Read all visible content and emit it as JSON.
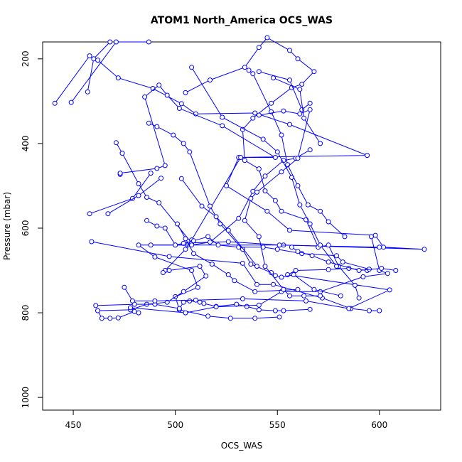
{
  "chart_data": {
    "type": "scatter",
    "title": "ATOM1 North_America OCS_WAS",
    "xlabel": "OCS_WAS",
    "ylabel": "Pressure (mbar)",
    "xlim": [
      435,
      630
    ],
    "ylim": [
      1030,
      160
    ],
    "y_inverted": true,
    "grid": false,
    "legend": "none",
    "x_ticks": [
      "450",
      "500",
      "550",
      "600"
    ],
    "y_ticks": [
      "200",
      "400",
      "600",
      "800",
      "1000"
    ],
    "x_tick_values": [
      450,
      500,
      550,
      600
    ],
    "y_tick_values": [
      200,
      400,
      600,
      800,
      1000
    ],
    "color": "#0000ff",
    "series_segments": [
      [
        [
          441,
          305
        ],
        [
          458,
          193
        ],
        [
          462,
          203
        ],
        [
          472,
          245
        ],
        [
          489,
          270
        ],
        [
          503,
          306
        ],
        [
          510,
          330
        ],
        [
          539,
          328
        ],
        [
          556,
          355
        ],
        [
          594,
          428
        ],
        [
          531,
          433
        ],
        [
          525,
          500
        ],
        [
          545,
          560
        ],
        [
          556,
          605
        ],
        [
          598,
          617
        ],
        [
          602,
          645
        ],
        [
          622,
          650
        ],
        [
          553,
          640
        ],
        [
          506,
          640
        ],
        [
          482,
          640
        ],
        [
          490,
          668
        ],
        [
          508,
          700
        ],
        [
          511,
          740
        ],
        [
          500,
          762
        ],
        [
          502,
          793
        ],
        [
          516,
          808
        ],
        [
          527,
          813
        ],
        [
          539,
          813
        ],
        [
          551,
          810
        ]
      ],
      [
        [
          449,
          303
        ],
        [
          471,
          160
        ],
        [
          487,
          160
        ]
      ],
      [
        [
          457,
          278
        ],
        [
          460,
          200
        ],
        [
          468,
          160
        ]
      ],
      [
        [
          473,
          473
        ],
        [
          473,
          470
        ],
        [
          491,
          459
        ],
        [
          495,
          452
        ],
        [
          485,
          290
        ],
        [
          492,
          262
        ],
        [
          496,
          286
        ],
        [
          502,
          317
        ],
        [
          523,
          358
        ],
        [
          549,
          433
        ],
        [
          532,
          433
        ],
        [
          508,
          628
        ],
        [
          505,
          650
        ],
        [
          495,
          700
        ],
        [
          494,
          705
        ],
        [
          497,
          700
        ],
        [
          512,
          690
        ],
        [
          515,
          713
        ],
        [
          504,
          750
        ],
        [
          496,
          775
        ],
        [
          486,
          780
        ],
        [
          478,
          793
        ],
        [
          462,
          795
        ],
        [
          464,
          813
        ],
        [
          468,
          813
        ],
        [
          472,
          812
        ],
        [
          480,
          797
        ],
        [
          482,
          800
        ]
      ],
      [
        [
          458,
          566
        ],
        [
          479,
          530
        ],
        [
          488,
          470
        ]
      ],
      [
        [
          459,
          632
        ],
        [
          497,
          667
        ],
        [
          533,
          683
        ],
        [
          540,
          733
        ],
        [
          548,
          733
        ],
        [
          572,
          765
        ],
        [
          586,
          790
        ],
        [
          595,
          795
        ],
        [
          600,
          795
        ]
      ],
      [
        [
          461,
          783
        ],
        [
          480,
          780
        ],
        [
          490,
          780
        ],
        [
          502,
          790
        ],
        [
          504,
          775
        ],
        [
          507,
          772
        ],
        [
          512,
          775
        ],
        [
          514,
          778
        ],
        [
          520,
          785
        ],
        [
          530,
          780
        ],
        [
          535,
          785
        ],
        [
          541,
          793
        ],
        [
          549,
          795
        ],
        [
          553,
          795
        ],
        [
          566,
          792
        ]
      ],
      [
        [
          467,
          566
        ],
        [
          482,
          523
        ],
        [
          493,
          482
        ]
      ],
      [
        [
          471,
          398
        ],
        [
          474,
          423
        ],
        [
          482,
          495
        ],
        [
          486,
          527
        ],
        [
          492,
          540
        ],
        [
          508,
          635
        ],
        [
          526,
          632
        ],
        [
          551,
          640
        ],
        [
          600,
          645
        ]
      ],
      [
        [
          475,
          740
        ],
        [
          479,
          772
        ],
        [
          490,
          772
        ],
        [
          510,
          770
        ],
        [
          533,
          767
        ],
        [
          564,
          772
        ],
        [
          585,
          790
        ],
        [
          605,
          746
        ],
        [
          555,
          710
        ],
        [
          559,
          700
        ],
        [
          575,
          698
        ],
        [
          585,
          695
        ],
        [
          594,
          700
        ]
      ],
      [
        [
          478,
          788
        ],
        [
          505,
          800
        ],
        [
          520,
          786
        ],
        [
          541,
          782
        ],
        [
          552,
          750
        ],
        [
          571,
          750
        ],
        [
          592,
          715
        ],
        [
          604,
          707
        ],
        [
          600,
          700
        ],
        [
          596,
          620
        ]
      ],
      [
        [
          486,
          582
        ],
        [
          491,
          595
        ],
        [
          495,
          600
        ],
        [
          500,
          640
        ],
        [
          504,
          636
        ],
        [
          509,
          630
        ],
        [
          516,
          620
        ],
        [
          521,
          640
        ],
        [
          531,
          645
        ],
        [
          543,
          645
        ],
        [
          550,
          650
        ],
        [
          562,
          660
        ],
        [
          579,
          665
        ],
        [
          582,
          680
        ],
        [
          595,
          697
        ]
      ],
      [
        [
          487,
          352
        ],
        [
          491,
          360
        ],
        [
          499,
          380
        ],
        [
          504,
          400
        ],
        [
          507,
          420
        ],
        [
          517,
          548
        ],
        [
          522,
          590
        ],
        [
          533,
          650
        ],
        [
          537,
          685
        ],
        [
          547,
          705
        ],
        [
          549,
          712
        ],
        [
          552,
          716
        ],
        [
          558,
          710
        ],
        [
          568,
          745
        ],
        [
          581,
          760
        ]
      ],
      [
        [
          488,
          640
        ],
        [
          500,
          640
        ],
        [
          508,
          640
        ],
        [
          517,
          633
        ],
        [
          531,
          577
        ],
        [
          538,
          513
        ],
        [
          544,
          477
        ],
        [
          553,
          440
        ],
        [
          559,
          435
        ],
        [
          566,
          415
        ]
      ],
      [
        [
          501,
          590
        ],
        [
          505,
          625
        ],
        [
          509,
          660
        ],
        [
          518,
          685
        ],
        [
          526,
          710
        ],
        [
          529,
          724
        ],
        [
          539,
          750
        ],
        [
          560,
          745
        ]
      ],
      [
        [
          503,
          483
        ],
        [
          513,
          548
        ],
        [
          520,
          573
        ],
        [
          526,
          605
        ],
        [
          540,
          690
        ]
      ],
      [
        [
          505,
          280
        ],
        [
          517,
          250
        ],
        [
          534,
          220
        ],
        [
          541,
          173
        ],
        [
          545,
          150
        ],
        [
          556,
          180
        ],
        [
          560,
          200
        ],
        [
          568,
          230
        ],
        [
          562,
          260
        ],
        [
          557,
          268
        ],
        [
          547,
          305
        ],
        [
          538,
          340
        ],
        [
          533,
          367
        ],
        [
          534,
          440
        ],
        [
          541,
          460
        ],
        [
          544,
          512
        ],
        [
          549,
          535
        ],
        [
          552,
          560
        ],
        [
          564,
          580
        ],
        [
          570,
          645
        ],
        [
          575,
          640
        ],
        [
          580,
          690
        ],
        [
          588,
          735
        ],
        [
          590,
          765
        ]
      ],
      [
        [
          508,
          220
        ],
        [
          523,
          338
        ],
        [
          543,
          390
        ],
        [
          550,
          420
        ],
        [
          557,
          480
        ],
        [
          561,
          545
        ],
        [
          566,
          590
        ],
        [
          571,
          640
        ],
        [
          579,
          690
        ]
      ],
      [
        [
          536,
          227
        ],
        [
          538,
          235
        ],
        [
          547,
          325
        ],
        [
          552,
          380
        ],
        [
          555,
          450
        ],
        [
          560,
          500
        ],
        [
          565,
          545
        ],
        [
          571,
          560
        ],
        [
          575,
          585
        ],
        [
          583,
          620
        ]
      ],
      [
        [
          541,
          230
        ],
        [
          556,
          250
        ],
        [
          562,
          320
        ],
        [
          566,
          305
        ]
      ],
      [
        [
          548,
          245
        ],
        [
          561,
          272
        ],
        [
          563,
          340
        ],
        [
          571,
          400
        ]
      ],
      [
        [
          541,
          333
        ],
        [
          553,
          323
        ],
        [
          561,
          330
        ],
        [
          566,
          320
        ],
        [
          560,
          435
        ],
        [
          552,
          467
        ],
        [
          540,
          515
        ],
        [
          537,
          530
        ],
        [
          534,
          582
        ],
        [
          541,
          620
        ],
        [
          544,
          690
        ],
        [
          553,
          745
        ],
        [
          556,
          760
        ],
        [
          563,
          760
        ],
        [
          571,
          760
        ]
      ],
      [
        [
          557,
          645
        ],
        [
          560,
          655
        ],
        [
          567,
          665
        ],
        [
          575,
          680
        ],
        [
          590,
          700
        ],
        [
          601,
          695
        ],
        [
          608,
          700
        ]
      ]
    ]
  }
}
